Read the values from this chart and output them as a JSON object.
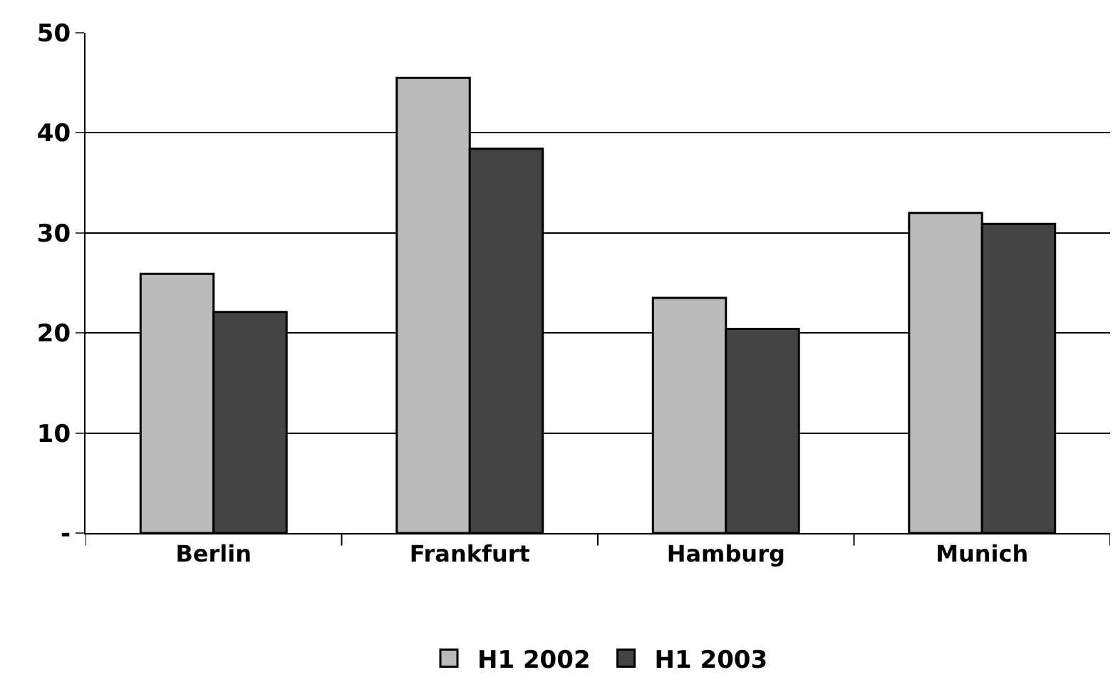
{
  "chart_data": {
    "type": "bar",
    "categories": [
      "Berlin",
      "Frankfurt",
      "Hamburg",
      "Munich"
    ],
    "series": [
      {
        "name": "H1 2002",
        "color": "#bababa",
        "values": [
          25.9,
          45.5,
          23.5,
          32.0
        ]
      },
      {
        "name": "H1 2003",
        "color": "#444444",
        "values": [
          22.1,
          38.4,
          20.4,
          30.9
        ]
      }
    ],
    "ylim": [
      0,
      50
    ],
    "yticks": [
      {
        "value": 0,
        "label": "-"
      },
      10,
      20,
      30,
      40,
      50
    ],
    "grid": "y",
    "legend": "bottom"
  }
}
